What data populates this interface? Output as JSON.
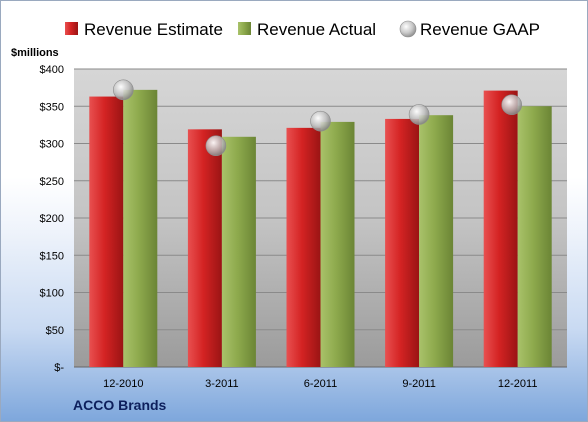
{
  "company": "ACCO Brands",
  "chart_data": {
    "type": "bar",
    "unit_label": "$millions",
    "categories": [
      "12-2010",
      "3-2011",
      "6-2011",
      "9-2011",
      "12-2011"
    ],
    "series": [
      {
        "name": "Revenue Estimate",
        "kind": "bar",
        "color": "#cc1f1f",
        "values": [
          363,
          319,
          321,
          333,
          371
        ]
      },
      {
        "name": "Revenue Actual",
        "kind": "bar",
        "color": "#8daa4c",
        "values": [
          372,
          309,
          329,
          338,
          350
        ]
      },
      {
        "name": "Revenue GAAP",
        "kind": "marker",
        "color": "#b8b8b8",
        "values": [
          372,
          297,
          330,
          339,
          352
        ]
      }
    ],
    "ylim": [
      0,
      400
    ],
    "yticks": [
      0,
      50,
      100,
      150,
      200,
      250,
      300,
      350,
      400
    ],
    "ytick_labels": [
      "$-",
      "$50",
      "$100",
      "$150",
      "$200",
      "$250",
      "$300",
      "$350",
      "$400"
    ],
    "grid": true,
    "legend_position": "top"
  }
}
